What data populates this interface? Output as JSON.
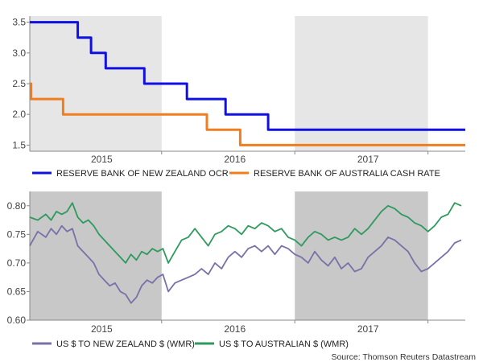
{
  "colors": {
    "shade_top": "#e6e6e6",
    "shade_bottom": "#c8c8c8",
    "axis": "#888888",
    "rbnz": "#1010e0",
    "rba": "#f07d1e",
    "nzd": "#7a70a8",
    "aud": "#2e9a5e"
  },
  "source": "Source: Thomson Reuters Datastream",
  "chart_data": [
    {
      "type": "line",
      "title": "",
      "ylim": [
        1.4,
        3.6
      ],
      "yticks": [
        "3.5",
        "3.0",
        "2.5",
        "2.0",
        "1.5"
      ],
      "ytick_values": [
        3.5,
        3.0,
        2.5,
        2.0,
        1.5
      ],
      "xlim": [
        2014.46,
        2017.73
      ],
      "xtick_labels": [
        "2015",
        "2016",
        "2017"
      ],
      "xtick_values": [
        2015.0,
        2016.0,
        2017.0
      ],
      "shaded_ranges": [
        [
          2014.46,
          2015.45
        ],
        [
          2016.45,
          2017.45
        ]
      ],
      "series": [
        {
          "name": "RESERVE BANK OF NEW ZEALAND OCR",
          "step": true,
          "points": [
            [
              2014.46,
              3.5
            ],
            [
              2014.82,
              3.25
            ],
            [
              2014.92,
              3.0
            ],
            [
              2015.03,
              2.75
            ],
            [
              2015.32,
              2.5
            ],
            [
              2015.64,
              2.25
            ],
            [
              2015.93,
              2.0
            ],
            [
              2016.25,
              1.75
            ],
            [
              2017.73,
              1.75
            ]
          ]
        },
        {
          "name": "RESERVE BANK OF AUSTRALIA CASH RATE",
          "step": true,
          "points": [
            [
              2014.46,
              2.5
            ],
            [
              2014.47,
              2.25
            ],
            [
              2014.71,
              2.0
            ],
            [
              2015.79,
              1.75
            ],
            [
              2016.04,
              1.5
            ],
            [
              2017.73,
              1.5
            ]
          ]
        }
      ]
    },
    {
      "type": "line",
      "title": "",
      "ylim": [
        0.6,
        0.825
      ],
      "yticks": [
        "0.80",
        "0.75",
        "0.70",
        "0.65",
        "0.60"
      ],
      "ytick_values": [
        0.8,
        0.75,
        0.7,
        0.65,
        0.6
      ],
      "xlim": [
        2014.46,
        2017.73
      ],
      "xtick_labels": [
        "2015",
        "2016",
        "2017"
      ],
      "xtick_values": [
        2015.0,
        2016.0,
        2017.0
      ],
      "shaded_ranges": [
        [
          2014.46,
          2015.45
        ],
        [
          2016.45,
          2017.45
        ]
      ],
      "series": [
        {
          "name": "US $ TO NEW ZEALAND $ (WMR)",
          "points": [
            [
              2014.46,
              0.73
            ],
            [
              2014.52,
              0.755
            ],
            [
              2014.58,
              0.745
            ],
            [
              2014.62,
              0.76
            ],
            [
              2014.66,
              0.75
            ],
            [
              2014.7,
              0.765
            ],
            [
              2014.74,
              0.755
            ],
            [
              2014.78,
              0.76
            ],
            [
              2014.82,
              0.73
            ],
            [
              2014.86,
              0.72
            ],
            [
              2014.9,
              0.71
            ],
            [
              2014.94,
              0.7
            ],
            [
              2014.98,
              0.68
            ],
            [
              2015.02,
              0.67
            ],
            [
              2015.06,
              0.66
            ],
            [
              2015.1,
              0.665
            ],
            [
              2015.14,
              0.65
            ],
            [
              2015.18,
              0.645
            ],
            [
              2015.22,
              0.63
            ],
            [
              2015.26,
              0.64
            ],
            [
              2015.3,
              0.66
            ],
            [
              2015.34,
              0.67
            ],
            [
              2015.38,
              0.665
            ],
            [
              2015.42,
              0.675
            ],
            [
              2015.46,
              0.68
            ],
            [
              2015.5,
              0.65
            ],
            [
              2015.55,
              0.665
            ],
            [
              2015.6,
              0.67
            ],
            [
              2015.65,
              0.675
            ],
            [
              2015.7,
              0.68
            ],
            [
              2015.75,
              0.69
            ],
            [
              2015.8,
              0.68
            ],
            [
              2015.85,
              0.7
            ],
            [
              2015.9,
              0.69
            ],
            [
              2015.95,
              0.71
            ],
            [
              2016.0,
              0.72
            ],
            [
              2016.05,
              0.71
            ],
            [
              2016.1,
              0.725
            ],
            [
              2016.15,
              0.73
            ],
            [
              2016.2,
              0.72
            ],
            [
              2016.25,
              0.73
            ],
            [
              2016.3,
              0.715
            ],
            [
              2016.35,
              0.73
            ],
            [
              2016.4,
              0.725
            ],
            [
              2016.45,
              0.715
            ],
            [
              2016.5,
              0.71
            ],
            [
              2016.55,
              0.7
            ],
            [
              2016.6,
              0.72
            ],
            [
              2016.65,
              0.705
            ],
            [
              2016.7,
              0.695
            ],
            [
              2016.75,
              0.71
            ],
            [
              2016.8,
              0.69
            ],
            [
              2016.85,
              0.7
            ],
            [
              2016.9,
              0.685
            ],
            [
              2016.95,
              0.69
            ],
            [
              2017.0,
              0.71
            ],
            [
              2017.05,
              0.72
            ],
            [
              2017.1,
              0.73
            ],
            [
              2017.15,
              0.745
            ],
            [
              2017.2,
              0.74
            ],
            [
              2017.25,
              0.73
            ],
            [
              2017.3,
              0.72
            ],
            [
              2017.35,
              0.7
            ],
            [
              2017.4,
              0.685
            ],
            [
              2017.45,
              0.69
            ],
            [
              2017.5,
              0.7
            ],
            [
              2017.55,
              0.71
            ],
            [
              2017.6,
              0.72
            ],
            [
              2017.65,
              0.735
            ],
            [
              2017.7,
              0.74
            ]
          ]
        },
        {
          "name": "US $ TO AUSTRALIAN $ (WMR)",
          "points": [
            [
              2014.46,
              0.78
            ],
            [
              2014.52,
              0.775
            ],
            [
              2014.58,
              0.785
            ],
            [
              2014.62,
              0.775
            ],
            [
              2014.66,
              0.79
            ],
            [
              2014.7,
              0.785
            ],
            [
              2014.74,
              0.79
            ],
            [
              2014.78,
              0.805
            ],
            [
              2014.82,
              0.78
            ],
            [
              2014.86,
              0.77
            ],
            [
              2014.9,
              0.775
            ],
            [
              2014.94,
              0.765
            ],
            [
              2014.98,
              0.75
            ],
            [
              2015.02,
              0.74
            ],
            [
              2015.06,
              0.73
            ],
            [
              2015.1,
              0.72
            ],
            [
              2015.14,
              0.71
            ],
            [
              2015.18,
              0.7
            ],
            [
              2015.22,
              0.715
            ],
            [
              2015.26,
              0.705
            ],
            [
              2015.3,
              0.72
            ],
            [
              2015.34,
              0.715
            ],
            [
              2015.38,
              0.725
            ],
            [
              2015.42,
              0.72
            ],
            [
              2015.46,
              0.725
            ],
            [
              2015.5,
              0.7
            ],
            [
              2015.55,
              0.72
            ],
            [
              2015.6,
              0.74
            ],
            [
              2015.65,
              0.745
            ],
            [
              2015.7,
              0.76
            ],
            [
              2015.75,
              0.745
            ],
            [
              2015.8,
              0.73
            ],
            [
              2015.85,
              0.75
            ],
            [
              2015.9,
              0.755
            ],
            [
              2015.95,
              0.765
            ],
            [
              2016.0,
              0.76
            ],
            [
              2016.05,
              0.75
            ],
            [
              2016.1,
              0.765
            ],
            [
              2016.15,
              0.76
            ],
            [
              2016.2,
              0.77
            ],
            [
              2016.25,
              0.765
            ],
            [
              2016.3,
              0.755
            ],
            [
              2016.35,
              0.76
            ],
            [
              2016.4,
              0.745
            ],
            [
              2016.45,
              0.74
            ],
            [
              2016.5,
              0.73
            ],
            [
              2016.55,
              0.745
            ],
            [
              2016.6,
              0.755
            ],
            [
              2016.65,
              0.75
            ],
            [
              2016.7,
              0.74
            ],
            [
              2016.75,
              0.745
            ],
            [
              2016.8,
              0.74
            ],
            [
              2016.85,
              0.745
            ],
            [
              2016.9,
              0.76
            ],
            [
              2016.95,
              0.75
            ],
            [
              2017.0,
              0.76
            ],
            [
              2017.05,
              0.775
            ],
            [
              2017.1,
              0.79
            ],
            [
              2017.15,
              0.8
            ],
            [
              2017.2,
              0.795
            ],
            [
              2017.25,
              0.785
            ],
            [
              2017.3,
              0.78
            ],
            [
              2017.35,
              0.77
            ],
            [
              2017.4,
              0.765
            ],
            [
              2017.45,
              0.755
            ],
            [
              2017.5,
              0.765
            ],
            [
              2017.55,
              0.78
            ],
            [
              2017.6,
              0.785
            ],
            [
              2017.65,
              0.805
            ],
            [
              2017.7,
              0.8
            ]
          ]
        }
      ]
    }
  ]
}
